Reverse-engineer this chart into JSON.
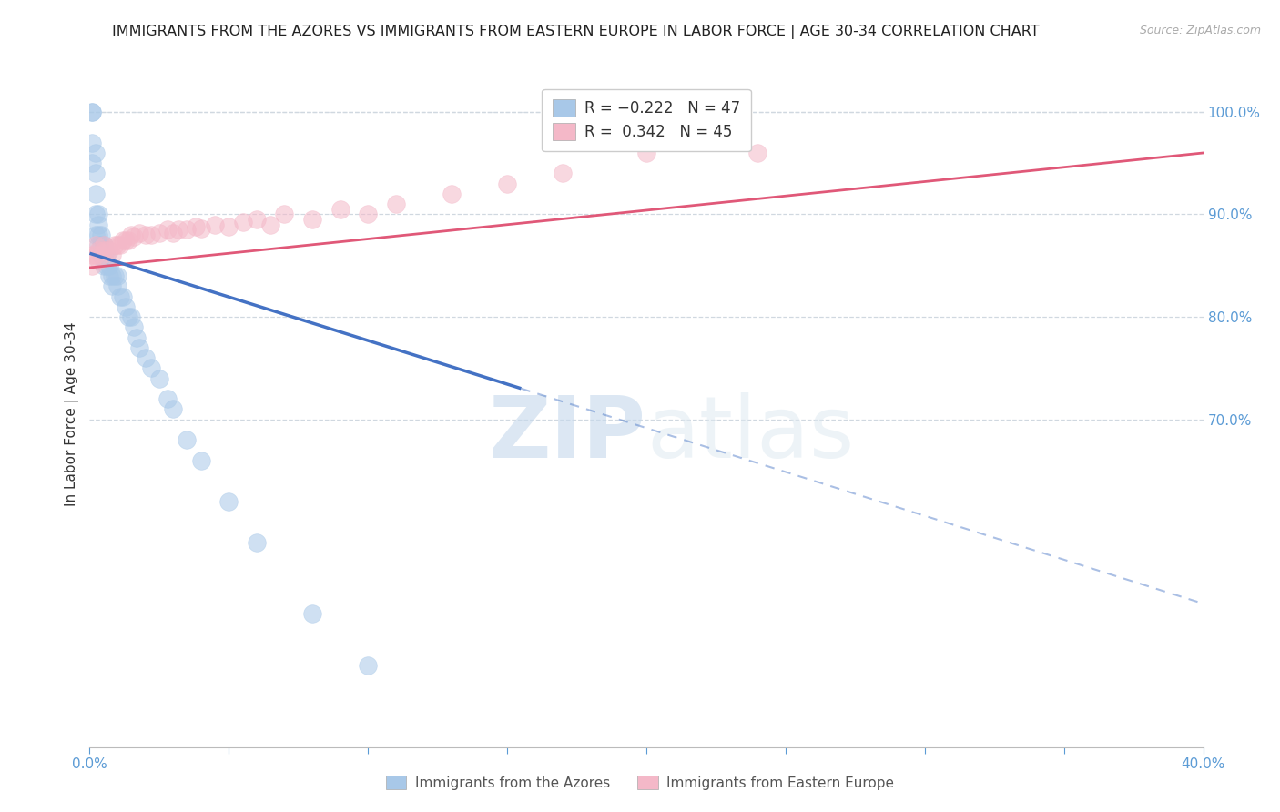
{
  "title": "IMMIGRANTS FROM THE AZORES VS IMMIGRANTS FROM EASTERN EUROPE IN LABOR FORCE | AGE 30-34 CORRELATION CHART",
  "source": "Source: ZipAtlas.com",
  "ylabel": "In Labor Force | Age 30-34",
  "xlim": [
    0.0,
    0.4
  ],
  "ylim": [
    0.38,
    1.03
  ],
  "xticks": [
    0.0,
    0.05,
    0.1,
    0.15,
    0.2,
    0.25,
    0.3,
    0.35,
    0.4
  ],
  "xtick_labels": [
    "0.0%",
    "",
    "",
    "",
    "",
    "",
    "",
    "",
    "40.0%"
  ],
  "yticks_right": [
    0.7,
    0.8,
    0.9,
    1.0
  ],
  "ytick_labels_right": [
    "70.0%",
    "80.0%",
    "90.0%",
    "100.0%"
  ],
  "color_azores": "#a8c8e8",
  "color_eastern": "#f4b8c8",
  "color_line_azores": "#4472c4",
  "color_line_eastern": "#e05878",
  "watermark_color": "#dce8f4",
  "grid_color": "#d0d8e0",
  "background_color": "#ffffff",
  "title_fontsize": 11.5,
  "tick_color": "#5b9bd5",
  "azores_x": [
    0.001,
    0.001,
    0.001,
    0.001,
    0.002,
    0.002,
    0.002,
    0.002,
    0.002,
    0.003,
    0.003,
    0.003,
    0.003,
    0.004,
    0.004,
    0.004,
    0.005,
    0.005,
    0.005,
    0.006,
    0.006,
    0.007,
    0.007,
    0.008,
    0.008,
    0.009,
    0.01,
    0.01,
    0.011,
    0.012,
    0.013,
    0.014,
    0.015,
    0.016,
    0.017,
    0.018,
    0.02,
    0.022,
    0.025,
    0.028,
    0.03,
    0.035,
    0.04,
    0.05,
    0.06,
    0.08,
    0.1
  ],
  "azores_y": [
    1.0,
    1.0,
    0.97,
    0.95,
    0.96,
    0.94,
    0.92,
    0.9,
    0.88,
    0.9,
    0.89,
    0.88,
    0.87,
    0.88,
    0.87,
    0.86,
    0.87,
    0.86,
    0.85,
    0.86,
    0.85,
    0.84,
    0.85,
    0.84,
    0.83,
    0.84,
    0.84,
    0.83,
    0.82,
    0.82,
    0.81,
    0.8,
    0.8,
    0.79,
    0.78,
    0.77,
    0.76,
    0.75,
    0.74,
    0.72,
    0.71,
    0.68,
    0.66,
    0.62,
    0.58,
    0.51,
    0.46
  ],
  "eastern_x": [
    0.001,
    0.001,
    0.002,
    0.002,
    0.003,
    0.003,
    0.004,
    0.005,
    0.005,
    0.006,
    0.007,
    0.008,
    0.009,
    0.01,
    0.011,
    0.012,
    0.013,
    0.014,
    0.015,
    0.016,
    0.018,
    0.02,
    0.022,
    0.025,
    0.028,
    0.03,
    0.032,
    0.035,
    0.038,
    0.04,
    0.045,
    0.05,
    0.055,
    0.06,
    0.065,
    0.07,
    0.08,
    0.09,
    0.1,
    0.11,
    0.13,
    0.15,
    0.17,
    0.2,
    0.24
  ],
  "eastern_y": [
    0.86,
    0.85,
    0.86,
    0.87,
    0.855,
    0.865,
    0.86,
    0.865,
    0.87,
    0.865,
    0.865,
    0.86,
    0.87,
    0.87,
    0.87,
    0.875,
    0.875,
    0.875,
    0.88,
    0.878,
    0.882,
    0.88,
    0.88,
    0.882,
    0.885,
    0.882,
    0.885,
    0.885,
    0.888,
    0.886,
    0.89,
    0.888,
    0.892,
    0.895,
    0.89,
    0.9,
    0.895,
    0.905,
    0.9,
    0.91,
    0.92,
    0.93,
    0.94,
    0.96,
    0.96
  ],
  "trend_az_x0": 0.0,
  "trend_az_y0": 0.862,
  "trend_az_x1": 0.155,
  "trend_az_y1": 0.73,
  "trend_az_dash_x1": 0.4,
  "trend_az_dash_y1": 0.52,
  "trend_ea_x0": 0.0,
  "trend_ea_y0": 0.848,
  "trend_ea_x1": 0.4,
  "trend_ea_y1": 0.96
}
